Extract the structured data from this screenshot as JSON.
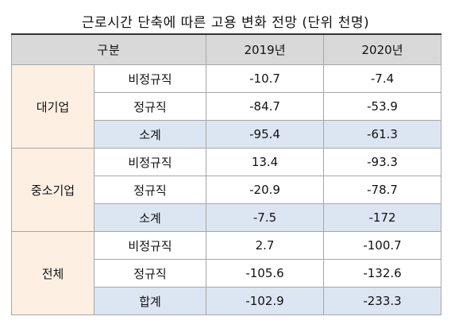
{
  "title": "근로시간 단축에 따른 고용 변화 전망 (단위 천명)",
  "header": {
    "category": "구분",
    "col_2019": "2019년",
    "col_2020": "2020년"
  },
  "groups": [
    {
      "name": "대기업",
      "rows": [
        {
          "label": "비정규직",
          "v2019": "-10.7",
          "v2020": "-7.4"
        },
        {
          "label": "정규직",
          "v2019": "-84.7",
          "v2020": "-53.9"
        },
        {
          "label": "소계",
          "v2019": "-95.4",
          "v2020": "-61.3"
        }
      ]
    },
    {
      "name": "중소기업",
      "rows": [
        {
          "label": "비정규직",
          "v2019": "13.4",
          "v2020": "-93.3"
        },
        {
          "label": "정규직",
          "v2019": "-20.9",
          "v2020": "-78.7"
        },
        {
          "label": "소계",
          "v2019": "-7.5",
          "v2020": "-172"
        }
      ]
    },
    {
      "name": "전체",
      "rows": [
        {
          "label": "비정규직",
          "v2019": "2.7",
          "v2020": "-100.7"
        },
        {
          "label": "정규직",
          "v2019": "-105.6",
          "v2020": "-132.6"
        },
        {
          "label": "합계",
          "v2019": "-102.9",
          "v2020": "-233.3"
        }
      ]
    }
  ]
}
